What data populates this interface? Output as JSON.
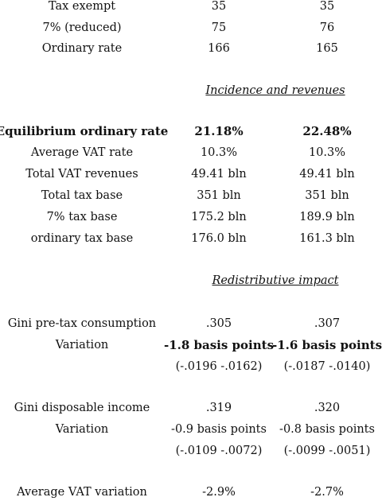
{
  "top_rows": [
    {
      "label": "Tax exempt",
      "a": "35",
      "b": "35"
    },
    {
      "label": "7% (reduced)",
      "a": "75",
      "b": "76"
    },
    {
      "label": "Ordinary rate",
      "a": "166",
      "b": "165"
    }
  ],
  "section_incidence": {
    "heading": "Incidence and revenues"
  },
  "incidence_rows": [
    {
      "label": "Equilibrium ordinary rate",
      "a": "21.18%",
      "b": "22.48%"
    },
    {
      "label": "Average VAT rate",
      "a": "10.3%",
      "b": "10.3%"
    },
    {
      "label": "Total VAT revenues",
      "a": "49.41 bln",
      "b": "49.41 bln"
    },
    {
      "label": "Total tax base",
      "a": "351 bln",
      "b": "351 bln"
    },
    {
      "label": "7% tax base",
      "a": "175.2 bln",
      "b": "189.9 bln"
    },
    {
      "label": "ordinary tax base",
      "a": "176.0 bln",
      "b": "161.3 bln"
    }
  ],
  "section_redistributive": {
    "heading": "Redistributive impact"
  },
  "gini_consumption": {
    "label": "Gini pre-tax consumption",
    "a": ".305",
    "b": ".307",
    "variation_label": "Variation",
    "var_a": "-1.8 basis points",
    "var_b": "-1.6 basis points",
    "ci_a": "(-.0196 -.0162)",
    "ci_b": "(-.0187 -.0140)"
  },
  "gini_income": {
    "label": "Gini disposable income",
    "a": ".319",
    "b": ".320",
    "variation_label": "Variation",
    "var_a": "-0.9 basis points",
    "var_b": "-0.8 basis points",
    "ci_a": "(-.0109 -.0072)",
    "ci_b": "(-.0099 -.0051)"
  },
  "avg_vat_variation": {
    "label": "Average VAT variation",
    "a": "-2.9%",
    "b": "-2.7%"
  }
}
